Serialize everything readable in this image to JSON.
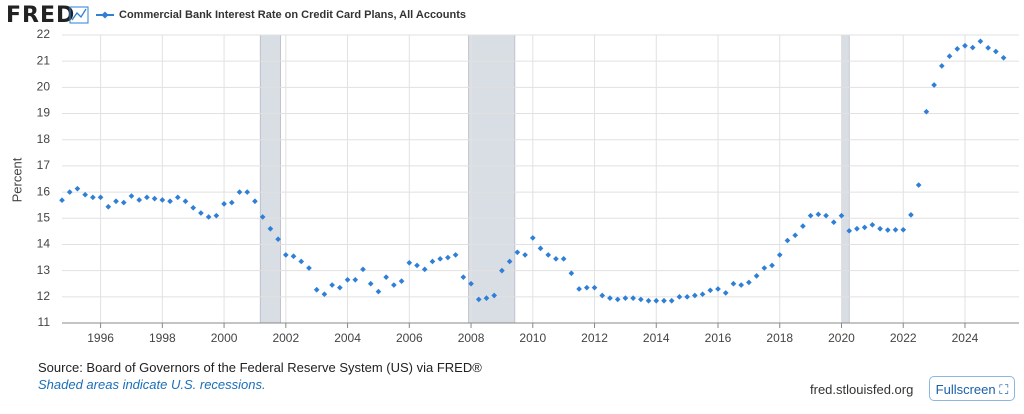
{
  "header": {
    "logo": "FRED"
  },
  "chart_data": {
    "type": "scatter",
    "y_label": "Percent",
    "x": [
      1994.75,
      1995,
      1995.25,
      1995.5,
      1995.75,
      1996,
      1996.25,
      1996.5,
      1996.75,
      1997,
      1997.25,
      1997.5,
      1997.75,
      1998,
      1998.25,
      1998.5,
      1998.75,
      1999,
      1999.25,
      1999.5,
      1999.75,
      2000,
      2000.25,
      2000.5,
      2000.75,
      2001,
      2001.25,
      2001.5,
      2001.75,
      2002,
      2002.25,
      2002.5,
      2002.75,
      2003,
      2003.25,
      2003.5,
      2003.75,
      2004,
      2004.25,
      2004.5,
      2004.75,
      2005,
      2005.25,
      2005.5,
      2005.75,
      2006,
      2006.25,
      2006.5,
      2006.75,
      2007,
      2007.25,
      2007.5,
      2007.75,
      2008,
      2008.25,
      2008.5,
      2008.75,
      2009,
      2009.25,
      2009.5,
      2009.75,
      2010,
      2010.25,
      2010.5,
      2010.75,
      2011,
      2011.25,
      2011.5,
      2011.75,
      2012,
      2012.25,
      2012.5,
      2012.75,
      2013,
      2013.25,
      2013.5,
      2013.75,
      2014,
      2014.25,
      2014.5,
      2014.75,
      2015,
      2015.25,
      2015.5,
      2015.75,
      2016,
      2016.25,
      2016.5,
      2016.75,
      2017,
      2017.25,
      2017.5,
      2017.75,
      2018,
      2018.25,
      2018.5,
      2018.75,
      2019,
      2019.25,
      2019.5,
      2019.75,
      2020,
      2020.25,
      2020.5,
      2020.75,
      2021,
      2021.25,
      2021.5,
      2021.75,
      2022,
      2022.25,
      2022.5,
      2022.75,
      2023,
      2023.25,
      2023.5,
      2023.75,
      2024,
      2024.25,
      2024.5,
      2024.75,
      2025,
      2025.25
    ],
    "series": [
      {
        "name": "Commercial Bank Interest Rate on Credit Card Plans, All Accounts",
        "color": "#2f7fd6",
        "values": [
          15.69,
          16.0,
          16.13,
          15.9,
          15.8,
          15.8,
          15.44,
          15.65,
          15.6,
          15.85,
          15.7,
          15.8,
          15.75,
          15.7,
          15.65,
          15.8,
          15.65,
          15.4,
          15.2,
          15.05,
          15.1,
          15.55,
          15.6,
          16.0,
          16.0,
          15.65,
          15.05,
          14.6,
          14.2,
          13.6,
          13.55,
          13.35,
          13.1,
          12.27,
          12.1,
          12.45,
          12.35,
          12.65,
          12.65,
          13.05,
          12.5,
          12.2,
          12.75,
          12.45,
          12.6,
          13.3,
          13.2,
          13.05,
          13.35,
          13.45,
          13.5,
          13.6,
          12.75,
          12.5,
          11.9,
          11.95,
          12.05,
          13.0,
          13.35,
          13.7,
          13.6,
          14.25,
          13.85,
          13.6,
          13.45,
          13.45,
          12.9,
          12.3,
          12.35,
          12.35,
          12.05,
          11.95,
          11.9,
          11.95,
          11.95,
          11.9,
          11.85,
          11.85,
          11.85,
          11.85,
          12.0,
          12.0,
          12.05,
          12.1,
          12.25,
          12.3,
          12.15,
          12.5,
          12.45,
          12.55,
          12.8,
          13.1,
          13.2,
          13.6,
          14.15,
          14.35,
          14.7,
          15.1,
          15.15,
          15.1,
          14.85,
          15.1,
          14.52,
          14.6,
          14.65,
          14.75,
          14.6,
          14.55,
          14.56,
          14.56,
          15.13,
          16.27,
          19.07,
          20.09,
          20.82,
          21.19,
          21.47,
          21.59,
          21.52,
          21.76,
          21.51,
          21.37,
          21.13
        ]
      }
    ],
    "recessions": [
      [
        2001.17,
        2001.83
      ],
      [
        2007.92,
        2009.42
      ],
      [
        2020.0,
        2020.25
      ]
    ],
    "recession_color": "#d9dee4",
    "xlim": [
      1994.75,
      2025.75
    ],
    "xticks": [
      1996,
      1998,
      2000,
      2002,
      2004,
      2006,
      2008,
      2010,
      2012,
      2014,
      2016,
      2018,
      2020,
      2022,
      2024
    ],
    "ylim": [
      11,
      22
    ],
    "yticks": [
      11,
      12,
      13,
      14,
      15,
      16,
      17,
      18,
      19,
      20,
      21,
      22
    ],
    "grid": true
  },
  "footer": {
    "source": "Source: Board of Governors of the Federal Reserve System (US) via FRED®",
    "note": "Shaded areas indicate U.S. recessions.",
    "url": "fred.stlouisfed.org",
    "button": "Fullscreen"
  }
}
